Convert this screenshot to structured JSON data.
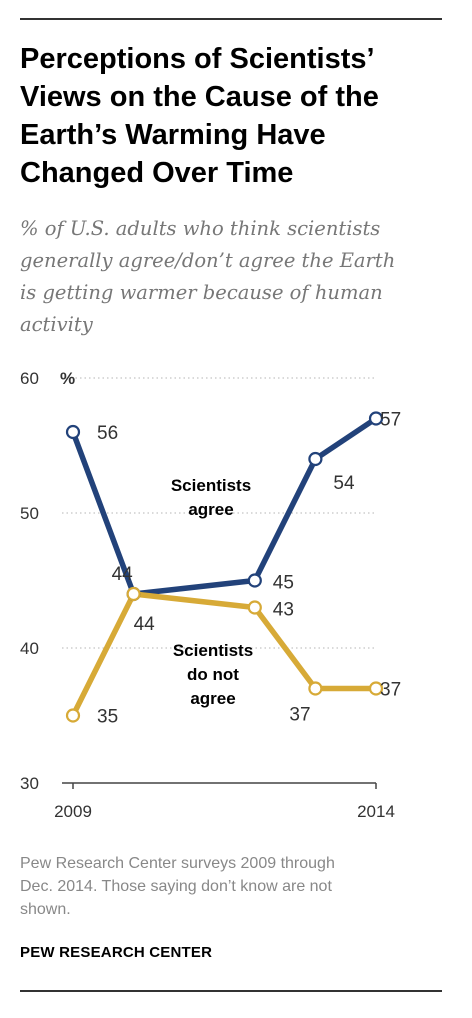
{
  "title_lines": [
    "Perceptions of Scientists’",
    "Views on the Cause of the",
    "Earth’s Warming Have",
    "Changed Over Time"
  ],
  "subtitle_lines": [
    "% of U.S. adults who think scientists",
    "generally agree/don’t agree the Earth",
    "is getting warmer because of human",
    "activity"
  ],
  "source_lines": [
    "Pew Research Center surveys 2009 through",
    "Dec. 2014. Those saying don’t know are not",
    "shown."
  ],
  "brand": "PEW RESEARCH CENTER",
  "chart_data": {
    "type": "line",
    "x": [
      2009,
      2010,
      2012,
      2013,
      2014
    ],
    "x_tick_labels": [
      {
        "x": 2009,
        "label": "2009"
      },
      {
        "x": 2014,
        "label": "2014"
      }
    ],
    "ylim": [
      30,
      60
    ],
    "y_ticks": [
      {
        "value": 60,
        "label": "60"
      },
      {
        "value": 50,
        "label": "50"
      },
      {
        "value": 40,
        "label": "40"
      },
      {
        "value": 30,
        "label": "30"
      }
    ],
    "y_unit": "%",
    "grid": "dotted-horizontal",
    "series": [
      {
        "label_lines": [
          "Scientists",
          "agree"
        ],
        "color": "#22427a",
        "values": [
          56,
          44,
          45,
          54,
          57
        ],
        "data_labels": [
          "56",
          "44",
          "45",
          "54",
          "57"
        ]
      },
      {
        "label_lines": [
          "Scientists",
          "do not",
          "agree"
        ],
        "color": "#d7aa37",
        "values": [
          35,
          44,
          43,
          37,
          37
        ],
        "data_labels": [
          "35",
          "44",
          "43",
          "37",
          "37"
        ]
      }
    ]
  }
}
